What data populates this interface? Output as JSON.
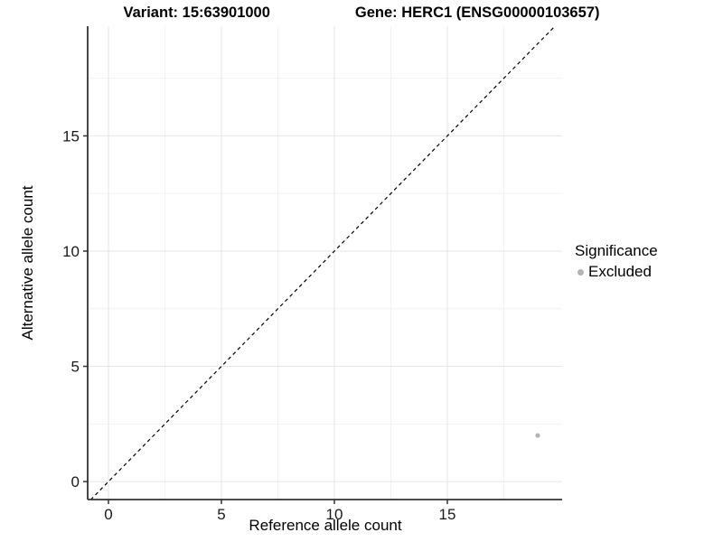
{
  "chart_data": {
    "type": "scatter",
    "title_left": "Variant: 15:63901000",
    "title_right": "Gene: HERC1 (ENSG00000103657)",
    "xlabel": "Reference allele count",
    "ylabel": "Alternative allele count",
    "xlim": [
      -0.92,
      20.08
    ],
    "ylim": [
      -0.78,
      19.76
    ],
    "x_major_ticks": [
      0,
      5,
      10,
      15
    ],
    "y_major_ticks": [
      0,
      5,
      10,
      15
    ],
    "x_minor_ticks": [
      2.5,
      7.5,
      12.5,
      17.5
    ],
    "y_minor_ticks": [
      2.5,
      7.5,
      12.5,
      17.5
    ],
    "grid": true,
    "identity_line": {
      "style": "dashed",
      "x1": -1,
      "y1": -1,
      "x2": 21,
      "y2": 21,
      "color": "#000000"
    },
    "series": [
      {
        "name": "Excluded",
        "color": "#b3b3b3",
        "points": [
          {
            "x": 19,
            "y": 2
          }
        ]
      }
    ],
    "legend": {
      "title": "Significance",
      "position": "right",
      "items": [
        {
          "label": "Excluded",
          "color": "#b3b3b3"
        }
      ]
    }
  },
  "colors": {
    "background": "#ffffff",
    "grid_major": "#e6e6e6",
    "grid_minor": "#f2f2f2",
    "axis_line": "#333333",
    "tick_label": "#1a1a1a",
    "title_text": "#000000"
  }
}
